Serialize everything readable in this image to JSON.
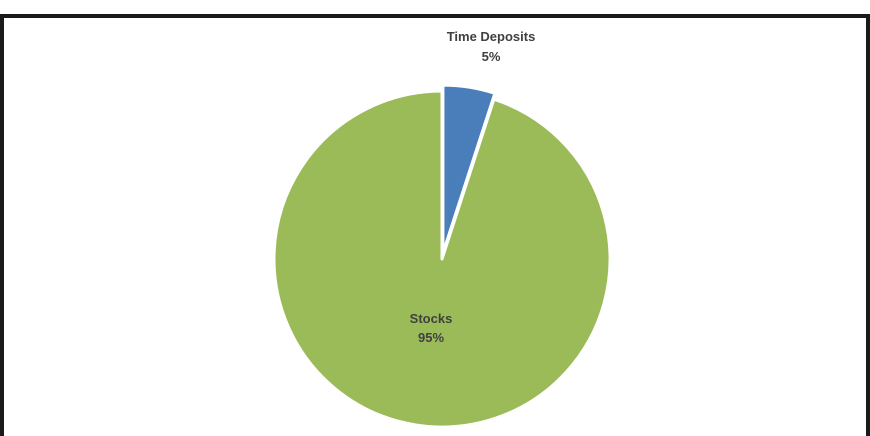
{
  "chart_data": {
    "type": "pie",
    "title": "",
    "slices": [
      {
        "label": "Time Deposits",
        "value": 5,
        "value_label": "5%",
        "color": "#4a7ebb",
        "exploded": true
      },
      {
        "label": "Stocks",
        "value": 95,
        "value_label": "95%",
        "color": "#9bbb59",
        "exploded": false
      }
    ],
    "start_angle": "12 o'clock",
    "direction": "clockwise",
    "legend": "none",
    "slice_border_color": "#ffffff"
  }
}
